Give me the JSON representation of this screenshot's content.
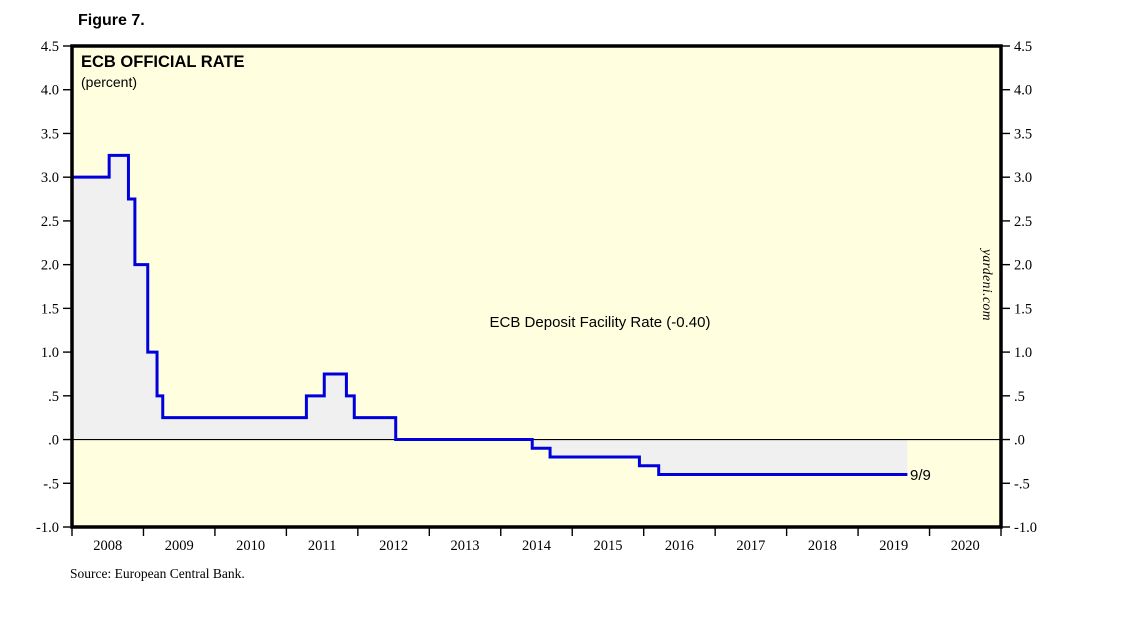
{
  "figure": {
    "label": "Figure 7."
  },
  "source_note": "Source: European Central Bank.",
  "chart": {
    "watermark": "yardeni.com",
    "colors": {
      "plot_background": "#FFFFE0",
      "area_fill": "#F0F0F0",
      "line": "#0000DD",
      "border": "#000000",
      "zero_line": "#000000",
      "end_label": "#0000DD"
    }
  },
  "chart_data": {
    "type": "line",
    "line_style": "step-after",
    "title": "ECB OFFICIAL RATE",
    "subtitle": "(percent)",
    "ylabel": "percent",
    "x_range": [
      2008,
      2021
    ],
    "y_range": [
      -1.0,
      4.5
    ],
    "grid": false,
    "zero_line": true,
    "area_fill_to_zero": true,
    "legend_position": "none",
    "axis_labels_on_both_sides": true,
    "y_ticks": [
      {
        "v": 4.5,
        "label": "4.5"
      },
      {
        "v": 4.0,
        "label": "4.0"
      },
      {
        "v": 3.5,
        "label": "3.5"
      },
      {
        "v": 3.0,
        "label": "3.0"
      },
      {
        "v": 2.5,
        "label": "2.5"
      },
      {
        "v": 2.0,
        "label": "2.0"
      },
      {
        "v": 1.5,
        "label": "1.5"
      },
      {
        "v": 1.0,
        "label": "1.0"
      },
      {
        "v": 0.5,
        "label": ".5"
      },
      {
        "v": 0.0,
        "label": ".0"
      },
      {
        "v": -0.5,
        "label": "-.5"
      },
      {
        "v": -1.0,
        "label": "-1.0"
      }
    ],
    "x_tick_labels": [
      "2008",
      "2009",
      "2010",
      "2011",
      "2012",
      "2013",
      "2014",
      "2015",
      "2016",
      "2017",
      "2018",
      "2019",
      "2020"
    ],
    "series": [
      {
        "name": "ECB Deposit Facility Rate",
        "current_value": -0.4,
        "last_observation": "9/9",
        "points": [
          [
            2008.0,
            3.0
          ],
          [
            2008.52,
            3.25
          ],
          [
            2008.79,
            2.75
          ],
          [
            2008.88,
            2.0
          ],
          [
            2009.06,
            1.0
          ],
          [
            2009.19,
            0.5
          ],
          [
            2009.27,
            0.25
          ],
          [
            2011.28,
            0.5
          ],
          [
            2011.53,
            0.75
          ],
          [
            2011.84,
            0.5
          ],
          [
            2011.95,
            0.25
          ],
          [
            2012.53,
            0.0
          ],
          [
            2014.44,
            -0.1
          ],
          [
            2014.69,
            -0.2
          ],
          [
            2015.94,
            -0.3
          ],
          [
            2016.21,
            -0.4
          ]
        ],
        "end": [
          2019.69,
          -0.4
        ]
      }
    ],
    "annotations": [
      {
        "text": "ECB Deposit Facility Rate (-0.40)"
      },
      {
        "text": "9/9"
      }
    ]
  }
}
